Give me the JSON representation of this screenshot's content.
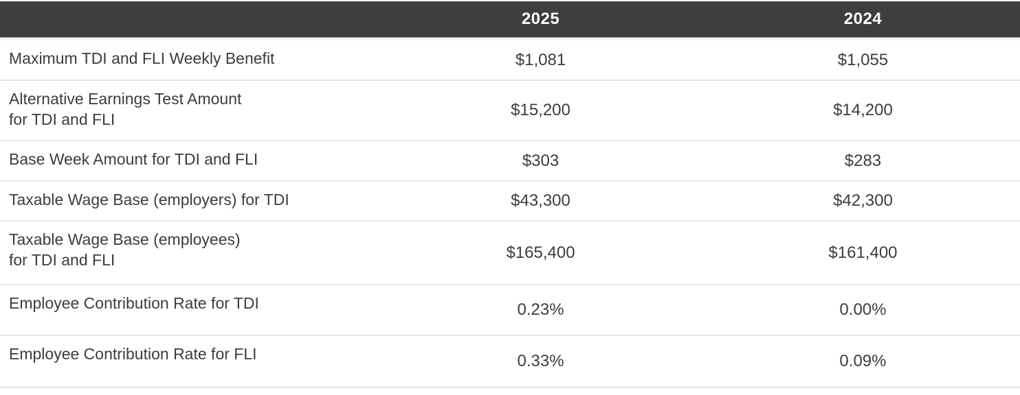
{
  "colors": {
    "header_bg": "#3E3E3E",
    "header_text": "#FCFCFC",
    "body_text": "#3C3C3C",
    "row_divider": "#E6E6E6",
    "header_underline": "#8F8F8F"
  },
  "table": {
    "columns": [
      {
        "label": ""
      },
      {
        "label": "2025"
      },
      {
        "label": "2024"
      }
    ],
    "rows": [
      {
        "label": "Maximum TDI and FLI Weekly Benefit",
        "y2025": "$1,081",
        "y2024": "$1,055"
      },
      {
        "label": "Alternative Earnings Test Amount\nfor TDI and FLI",
        "y2025": "$15,200",
        "y2024": "$14,200"
      },
      {
        "label": "Base Week Amount for TDI and FLI",
        "y2025": "$303",
        "y2024": "$283"
      },
      {
        "label": "Taxable Wage Base (employers) for TDI",
        "y2025": "$43,300",
        "y2024": "$42,300"
      },
      {
        "label": "Taxable Wage Base (employees)\nfor TDI and FLI",
        "y2025": "$165,400",
        "y2024": "$161,400"
      },
      {
        "label": "Employee Contribution Rate for TDI",
        "y2025": "0.23%",
        "y2024": "0.00%"
      },
      {
        "label": "Employee Contribution Rate for FLI",
        "y2025": "0.33%",
        "y2024": "0.09%"
      }
    ]
  }
}
